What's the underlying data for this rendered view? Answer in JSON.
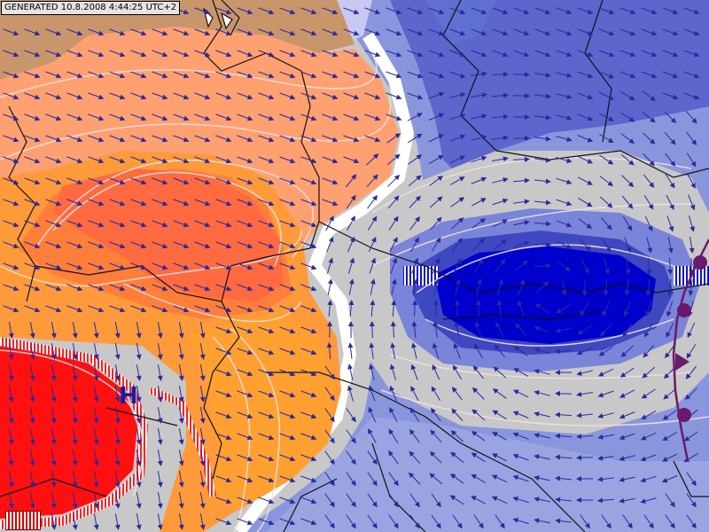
{
  "header": {
    "generated": "GENERATED 10.8.2008 4:44:25 UTC+2"
  },
  "pressure_centers": [
    {
      "type": "high",
      "symbol": "H",
      "color": "#1a1aa6"
    }
  ],
  "fields": {
    "warm_colors": [
      "#c9956a",
      "#ffa070",
      "#ff9a3a",
      "#ff6a40",
      "#ff0000"
    ],
    "cold_colors": [
      "#c8c8e8",
      "#ffffff",
      "#6a78d6",
      "#4a52c4",
      "#0000cc"
    ],
    "neutral_color": "#c8c8c8"
  },
  "weather_front": {
    "type": "occluded",
    "color": "#6a1a6a"
  },
  "wind": {
    "arrow_color": "#2a2aa0",
    "direction": "south-east"
  }
}
